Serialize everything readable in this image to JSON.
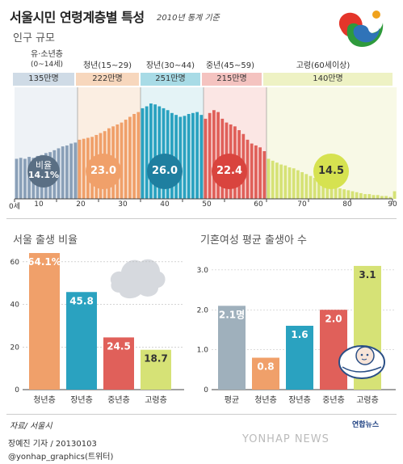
{
  "header": {
    "title": "서울시민 연령계층별 특성",
    "subtitle": "2010년 통계 기준",
    "section1": "인구 규모"
  },
  "colors": {
    "youth": "#8aa0b8",
    "young": "#f0a06a",
    "mid": "#2aa2c0",
    "middle": "#e0605a",
    "elder": "#d6e276",
    "avg": "#9fb0bc",
    "band_bg": "#f6ecd8"
  },
  "groups": [
    {
      "name": "유·소년층",
      "range": "(0~14세)",
      "pop": "135만명",
      "pct": "14.1%",
      "pct_label": "비율"
    },
    {
      "name": "청년(15~29)",
      "range": "",
      "pop": "222만명",
      "pct": "23.0",
      "pct_label": ""
    },
    {
      "name": "장년(30~44)",
      "range": "",
      "pop": "251만명",
      "pct": "26.0",
      "pct_label": ""
    },
    {
      "name": "중년(45~59)",
      "range": "",
      "pop": "215만명",
      "pct": "22.4",
      "pct_label": ""
    },
    {
      "name": "고령(60세이상)",
      "range": "",
      "pop": "140만명",
      "pct": "14.5",
      "pct_label": ""
    }
  ],
  "chart_data": [
    {
      "type": "bar",
      "title": "인구 규모",
      "xlabel": "",
      "ylabel": "",
      "x_ticks": [
        "0세",
        "10",
        "20",
        "30",
        "40",
        "50",
        "60",
        "70",
        "80",
        "90"
      ],
      "x_tick_values": [
        0,
        10,
        20,
        30,
        40,
        50,
        60,
        70,
        80,
        90
      ],
      "xlim": [
        0,
        90
      ],
      "ylim": [
        0,
        1
      ],
      "age_values_relative": [
        0.42,
        0.43,
        0.42,
        0.44,
        0.43,
        0.45,
        0.46,
        0.48,
        0.49,
        0.51,
        0.53,
        0.55,
        0.56,
        0.58,
        0.59,
        0.62,
        0.63,
        0.64,
        0.65,
        0.67,
        0.69,
        0.71,
        0.74,
        0.76,
        0.78,
        0.8,
        0.83,
        0.86,
        0.89,
        0.91,
        0.95,
        0.97,
        1.0,
        0.99,
        0.97,
        0.95,
        0.93,
        0.9,
        0.88,
        0.86,
        0.87,
        0.89,
        0.9,
        0.91,
        0.88,
        0.84,
        0.9,
        0.93,
        0.91,
        0.84,
        0.8,
        0.78,
        0.76,
        0.72,
        0.68,
        0.62,
        0.58,
        0.56,
        0.54,
        0.5,
        0.42,
        0.4,
        0.38,
        0.36,
        0.35,
        0.33,
        0.32,
        0.3,
        0.28,
        0.26,
        0.24,
        0.22,
        0.2,
        0.18,
        0.16,
        0.14,
        0.12,
        0.11,
        0.1,
        0.09,
        0.08,
        0.07,
        0.06,
        0.05,
        0.05,
        0.04,
        0.04,
        0.03,
        0.03,
        0.02,
        0.08
      ]
    },
    {
      "type": "bar",
      "title": "서울 출생 비율",
      "categories": [
        "청년층",
        "장년층",
        "중년층",
        "고령층"
      ],
      "values": [
        64.1,
        45.8,
        24.5,
        18.7
      ],
      "value_labels": [
        "64.1%",
        "45.8",
        "24.5",
        "18.7"
      ],
      "y_ticks": [
        0,
        20,
        40,
        60
      ],
      "ylim": [
        0,
        66
      ],
      "xlabel": "",
      "ylabel": ""
    },
    {
      "type": "bar",
      "title": "기혼여성 평균 출생아 수",
      "categories": [
        "평균",
        "청년층",
        "장년층",
        "중년층",
        "고령층"
      ],
      "values": [
        2.1,
        0.8,
        1.6,
        2.0,
        3.1
      ],
      "value_labels": [
        "2.1명",
        "0.8",
        "1.6",
        "2.0",
        "3.1"
      ],
      "y_ticks": [
        "0",
        "1.0",
        "2.0",
        "3.0"
      ],
      "ylim": [
        0,
        3.2
      ],
      "xlabel": "",
      "ylabel": ""
    }
  ],
  "footer": {
    "source": "자료/ 서울시",
    "reporter": "장예진 기자 / 20130103",
    "twitter": "@yonhap_graphics(트위터)",
    "logo": "연합뉴스",
    "watermark": "YONHAP NEWS"
  }
}
